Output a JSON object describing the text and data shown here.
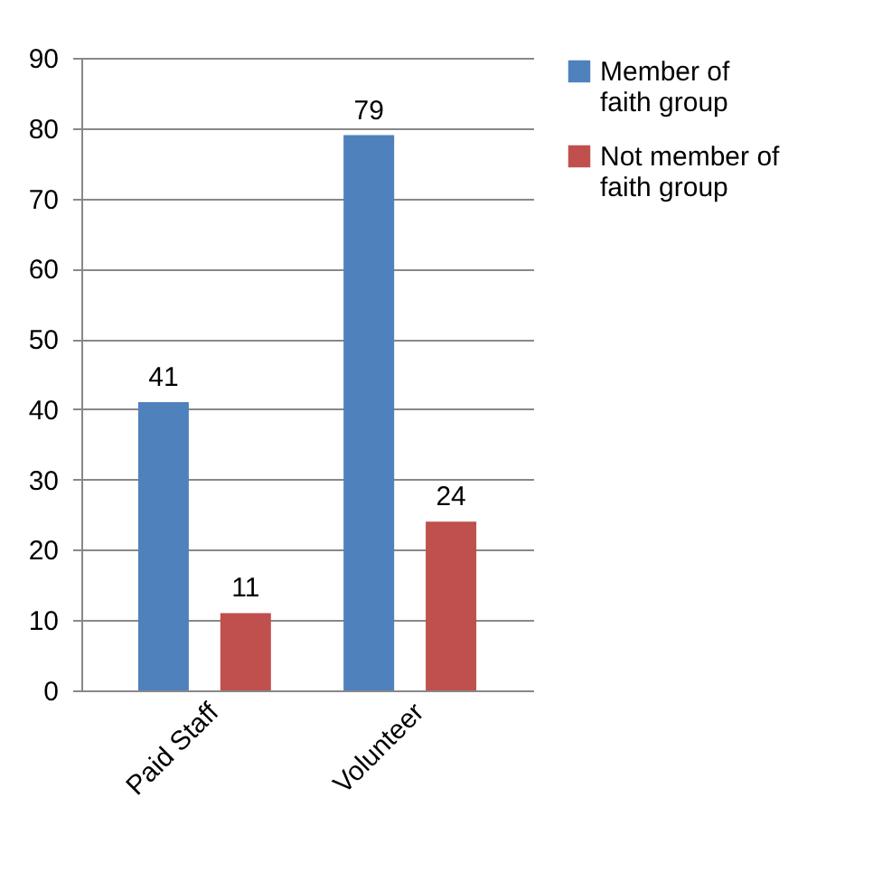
{
  "chart_data": {
    "type": "bar",
    "categories": [
      "Paid Staff",
      "Volunteer"
    ],
    "series": [
      {
        "name": "Member of faith group",
        "color": "#4f81bd",
        "values": [
          41,
          79
        ]
      },
      {
        "name": "Not member of faith group",
        "color": "#c0504d",
        "values": [
          11,
          24
        ]
      }
    ],
    "ylim": [
      0,
      90
    ],
    "yticks": [
      0,
      10,
      20,
      30,
      40,
      50,
      60,
      70,
      80,
      90
    ],
    "grid": "y",
    "legend": "right",
    "data_labels": true
  }
}
